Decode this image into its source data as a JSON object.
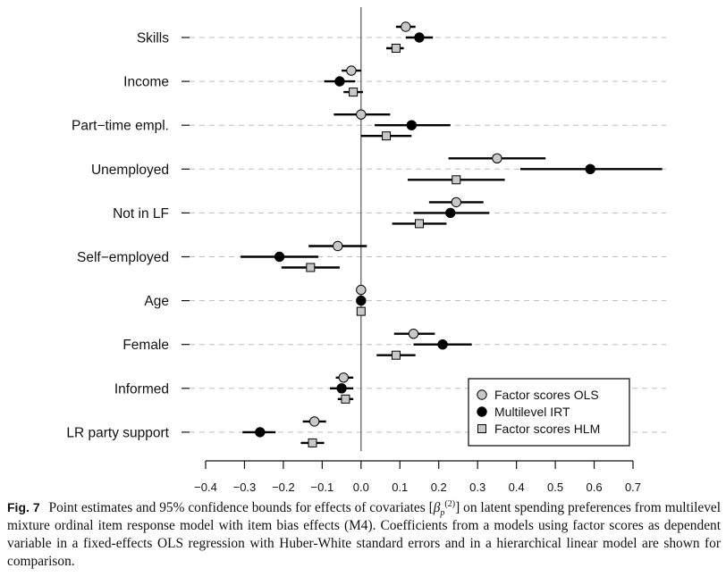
{
  "figure": {
    "label": "Fig. 7",
    "caption_before_math": "Point estimates and 95% confidence bounds for effects of covariates",
    "caption_math": "[βp(2)]",
    "caption_after_math": "on latent spending preferences from multilevel mixture ordinal item response model with item bias effects (M4). Coefficients from a models using factor scores as dependent variable in a fixed-effects OLS regression with Huber-White standard errors and in a hierarchical linear model are shown for comparison."
  },
  "chart_data": {
    "type": "scatter",
    "subtype": "dot-and-whisker",
    "categories": [
      "Skills",
      "Income",
      "Part−time empl.",
      "Unemployed",
      "Not in LF",
      "Self−employed",
      "Age",
      "Female",
      "Informed",
      "LR party support"
    ],
    "x_ticks": [
      -0.4,
      -0.3,
      -0.2,
      -0.1,
      0.0,
      0.1,
      0.2,
      0.3,
      0.4,
      0.5,
      0.6,
      0.7
    ],
    "x_tick_labels": [
      "−0.4",
      "−0.3",
      "−0.2",
      "−0.1",
      "0.0",
      "0.1",
      "0.2",
      "0.3",
      "0.4",
      "0.5",
      "0.6",
      "0.7"
    ],
    "xlim": [
      -0.4,
      0.7
    ],
    "xlabel": "",
    "ylabel": "",
    "zero_line": 0,
    "grid": "horizontal dashed",
    "legend_position": "bottom-right",
    "colors": {
      "ols_fill": "#c8c8c8",
      "irt_fill": "#000000",
      "hlm_fill": "#c8c8c8",
      "grid": "#bdbdbd"
    },
    "series": [
      {
        "name": "Factor scores OLS",
        "marker": "circle-gray",
        "estimate": [
          0.115,
          -0.025,
          0.0,
          0.35,
          0.245,
          -0.06,
          0.0,
          0.135,
          -0.045,
          -0.12
        ],
        "lower": [
          0.09,
          -0.05,
          -0.07,
          0.225,
          0.175,
          -0.135,
          0.0,
          0.085,
          -0.065,
          -0.15
        ],
        "upper": [
          0.14,
          0.0,
          0.075,
          0.475,
          0.315,
          0.015,
          0.0,
          0.19,
          -0.02,
          -0.09
        ]
      },
      {
        "name": "Multilevel IRT",
        "marker": "circle-black",
        "estimate": [
          0.15,
          -0.055,
          0.13,
          0.59,
          0.23,
          -0.21,
          0.0,
          0.21,
          -0.05,
          -0.26
        ],
        "lower": [
          0.115,
          -0.095,
          0.035,
          0.41,
          0.135,
          -0.31,
          0.0,
          0.135,
          -0.08,
          -0.305
        ],
        "upper": [
          0.185,
          -0.015,
          0.23,
          0.775,
          0.33,
          -0.11,
          0.0,
          0.285,
          -0.02,
          -0.22
        ]
      },
      {
        "name": "Factor scores HLM",
        "marker": "square-gray",
        "estimate": [
          0.09,
          -0.02,
          0.065,
          0.245,
          0.15,
          -0.13,
          0.0,
          0.09,
          -0.04,
          -0.125
        ],
        "lower": [
          0.065,
          -0.045,
          0.0,
          0.12,
          0.08,
          -0.205,
          0.0,
          0.04,
          -0.06,
          -0.155
        ],
        "upper": [
          0.11,
          0.005,
          0.13,
          0.37,
          0.22,
          -0.055,
          0.0,
          0.14,
          -0.02,
          -0.095
        ]
      }
    ]
  }
}
